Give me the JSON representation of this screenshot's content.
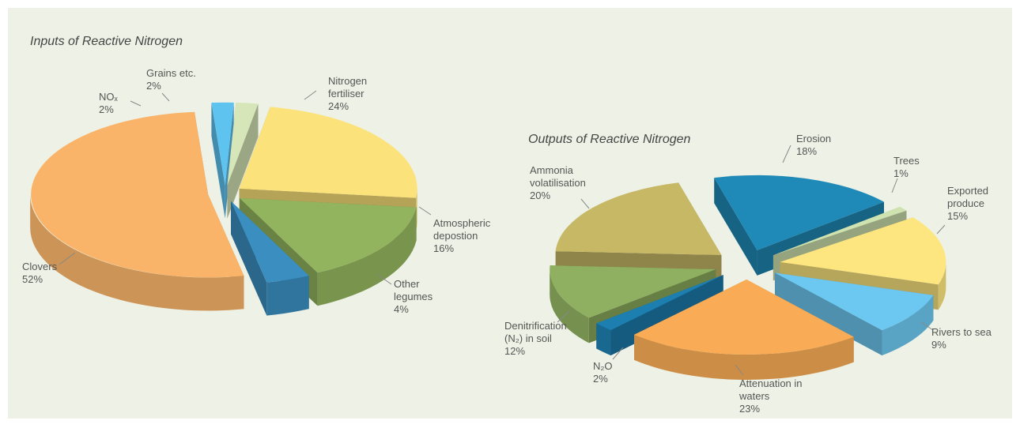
{
  "chart_data": [
    {
      "type": "pie",
      "title": "Inputs of Reactive Nitrogen",
      "categories": [
        "Nitrogen fertiliser",
        "Atmospheric depostion",
        "Other legumes",
        "Clovers",
        "NOₓ",
        "Grains etc."
      ],
      "values": [
        24,
        16,
        4,
        52,
        2,
        2
      ],
      "value_labels": [
        "24%",
        "16%",
        "4%",
        "52%",
        "2%",
        "2%"
      ],
      "colors": [
        "#fbe27a",
        "#93b45e",
        "#3a8fc0",
        "#f9b46a",
        "#5fc3f0",
        "#d6e6b8"
      ]
    },
    {
      "type": "pie",
      "title": "Outputs of Reactive Nitrogen",
      "categories": [
        "Erosion",
        "Trees",
        "Exported produce",
        "Rivers to sea",
        "Attenuation in waters",
        "N₂O",
        "Denitrification (N₂) in soil",
        "Ammonia volatilisation"
      ],
      "values": [
        18,
        1,
        15,
        9,
        23,
        2,
        12,
        20
      ],
      "value_labels": [
        "18%",
        "1%",
        "15%",
        "9%",
        "23%",
        "2%",
        "12%",
        "20%"
      ],
      "colors": [
        "#1f8ab8",
        "#cfe3b0",
        "#fde680",
        "#6cc8f0",
        "#f9ac55",
        "#1d7fb0",
        "#8fb060",
        "#c6b865"
      ]
    }
  ]
}
